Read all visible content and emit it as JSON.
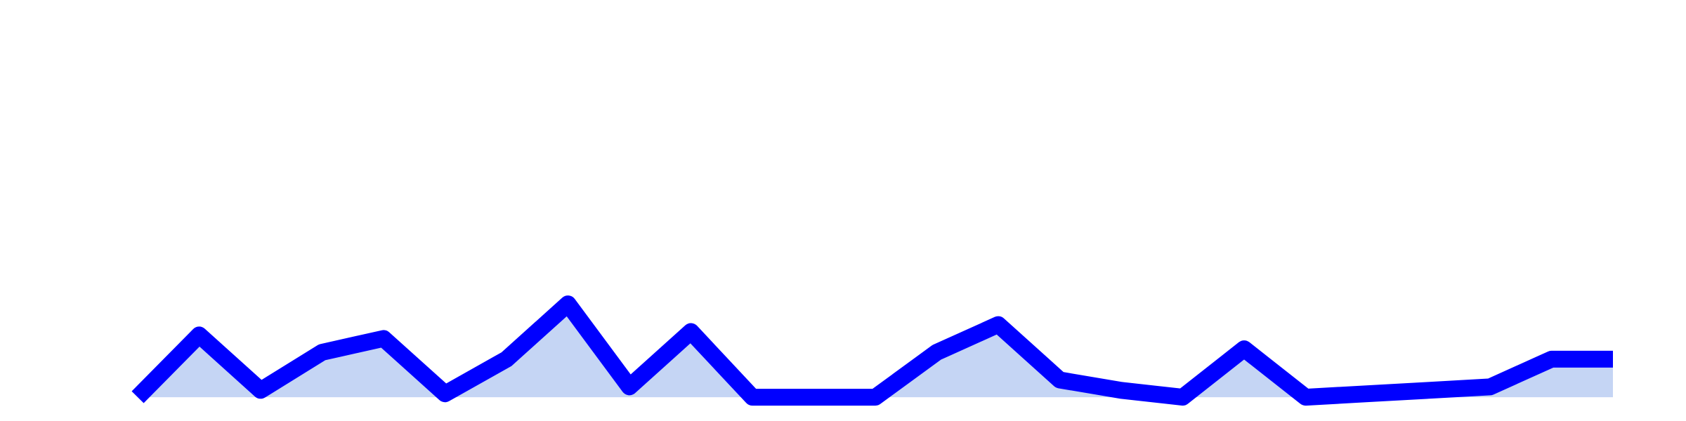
{
  "chart_data": {
    "type": "area",
    "title": "",
    "xlabel": "",
    "ylabel": "",
    "grid": false,
    "legend": "none",
    "x": [
      1,
      2,
      3,
      4,
      5,
      6,
      7,
      8,
      9,
      10,
      11,
      12,
      13,
      14,
      15,
      16,
      17,
      18,
      19,
      20,
      21,
      22,
      23,
      24,
      25
    ],
    "series": [
      {
        "values": [
          0,
          18,
          2,
          13,
          17,
          1,
          11,
          27,
          3,
          19,
          0,
          0,
          0,
          13,
          21,
          5,
          2,
          0,
          14,
          0,
          1,
          2,
          3,
          11,
          11
        ]
      }
    ],
    "ylim": [
      -2,
      110
    ],
    "colors": {
      "line": "#0000ff",
      "fill": "#c5d5f4",
      "background": "#ffffff"
    }
  }
}
